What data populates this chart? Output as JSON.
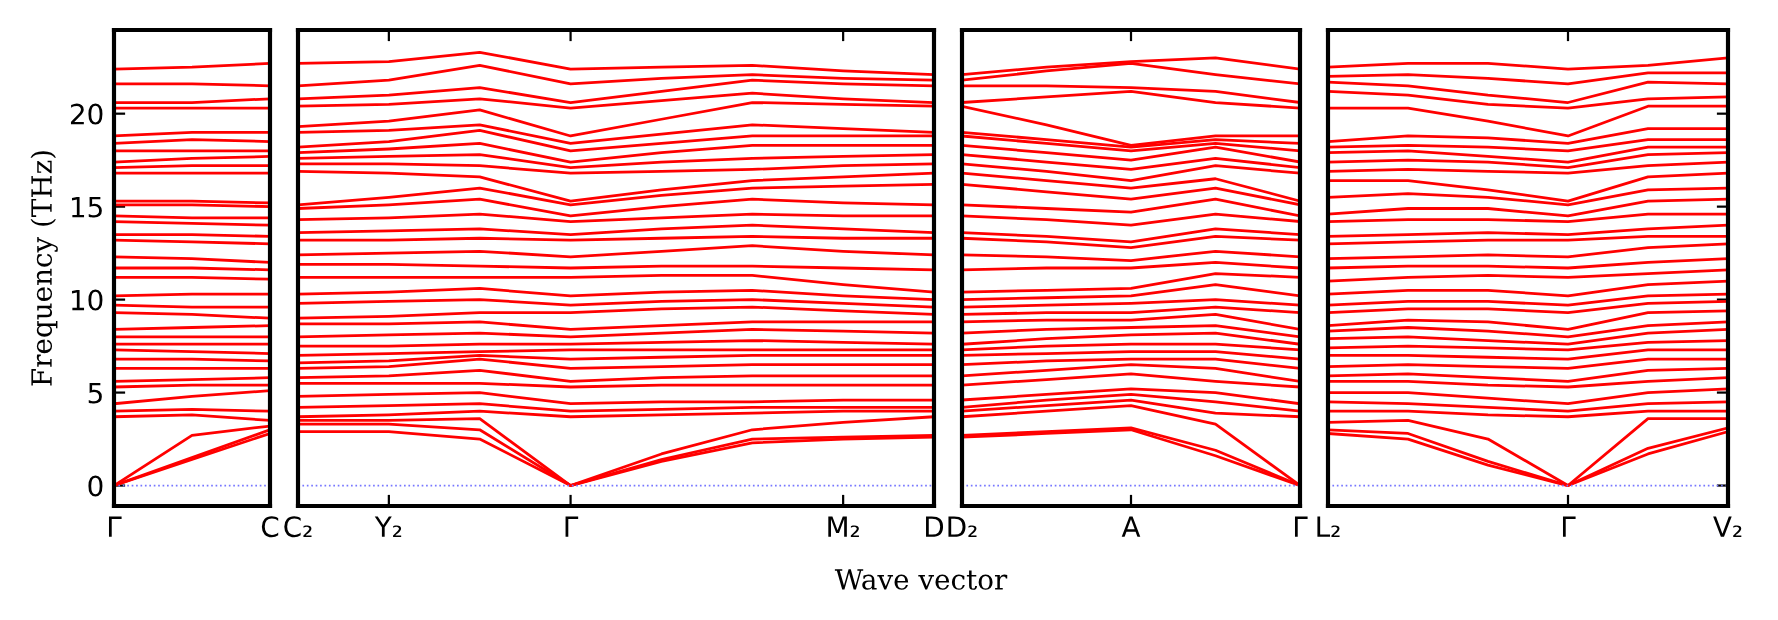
{
  "chart_data": [
    {
      "type": "line",
      "ylabel": "Frequency (THz)",
      "color": "#ff0000",
      "line_style": "solid",
      "marker": "none",
      "grid": false,
      "legend": false,
      "categories": [
        "Γ",
        null,
        "C"
      ],
      "ylim": [
        -1.1,
        24.5
      ],
      "yticks": [
        0,
        5,
        10,
        15,
        20
      ],
      "ref_lines": [
        {
          "axis": "y",
          "value": 0,
          "color": "#7777ff",
          "line_style": "dotted"
        }
      ],
      "series": [
        {
          "values": [
            0,
            1.4,
            2.8
          ]
        },
        {
          "values": [
            0,
            1.5,
            3.0
          ]
        },
        {
          "values": [
            0,
            2.7,
            3.2
          ]
        },
        {
          "values": [
            3.7,
            3.8,
            3.5
          ]
        },
        {
          "values": [
            4.0,
            4.1,
            4.0
          ]
        },
        {
          "values": [
            4.4,
            4.8,
            5.1
          ]
        },
        {
          "values": [
            5.3,
            5.4,
            5.4
          ]
        },
        {
          "values": [
            5.6,
            5.7,
            5.8
          ]
        },
        {
          "values": [
            6.3,
            6.3,
            6.3
          ]
        },
        {
          "values": [
            6.8,
            6.8,
            6.7
          ]
        },
        {
          "values": [
            7.3,
            7.2,
            7.1
          ]
        },
        {
          "values": [
            7.6,
            7.6,
            7.6
          ]
        },
        {
          "values": [
            8.0,
            8.0,
            8.0
          ]
        },
        {
          "values": [
            8.4,
            8.5,
            8.6
          ]
        },
        {
          "values": [
            9.3,
            9.2,
            9.0
          ]
        },
        {
          "values": [
            9.7,
            9.6,
            9.6
          ]
        },
        {
          "values": [
            10.2,
            10.3,
            10.3
          ]
        },
        {
          "values": [
            11.2,
            11.2,
            11.1
          ]
        },
        {
          "values": [
            11.7,
            11.7,
            11.6
          ]
        },
        {
          "values": [
            12.3,
            12.2,
            12.0
          ]
        },
        {
          "values": [
            13.2,
            13.1,
            13.0
          ]
        },
        {
          "values": [
            13.5,
            13.5,
            13.4
          ]
        },
        {
          "values": [
            14.2,
            14.1,
            14.0
          ]
        },
        {
          "values": [
            14.5,
            14.4,
            14.4
          ]
        },
        {
          "values": [
            15.1,
            15.1,
            15.0
          ]
        },
        {
          "values": [
            15.3,
            15.3,
            15.2
          ]
        },
        {
          "values": [
            16.8,
            16.8,
            16.8
          ]
        },
        {
          "values": [
            17.1,
            17.2,
            17.2
          ]
        },
        {
          "values": [
            17.4,
            17.6,
            17.7
          ]
        },
        {
          "values": [
            18.0,
            18.0,
            18.0
          ]
        },
        {
          "values": [
            18.4,
            18.6,
            18.5
          ]
        },
        {
          "values": [
            18.8,
            19.0,
            19.0
          ]
        },
        {
          "values": [
            20.3,
            20.3,
            20.3
          ]
        },
        {
          "values": [
            20.6,
            20.6,
            20.8
          ]
        },
        {
          "values": [
            21.6,
            21.6,
            21.5
          ]
        },
        {
          "values": [
            22.4,
            22.5,
            22.7
          ]
        }
      ]
    },
    {
      "type": "line",
      "xlabel": "Wave vector",
      "color": "#ff0000",
      "line_style": "solid",
      "marker": "none",
      "grid": false,
      "legend": false,
      "tick_labels": "x",
      "categories": [
        "C₂",
        "Y₂",
        null,
        "Γ",
        null,
        null,
        "M₂",
        "D"
      ],
      "ylim": [
        -1.1,
        24.5
      ],
      "yticks": [
        0,
        5,
        10,
        15,
        20
      ],
      "ref_lines": [
        {
          "axis": "y",
          "value": 0,
          "color": "#7777ff",
          "line_style": "dotted"
        }
      ],
      "series": [
        {
          "values": [
            2.9,
            2.9,
            2.5,
            0,
            1.3,
            2.3,
            2.5,
            2.6
          ]
        },
        {
          "values": [
            3.3,
            3.3,
            3.0,
            0,
            1.4,
            2.5,
            2.6,
            2.7
          ]
        },
        {
          "values": [
            3.5,
            3.5,
            3.6,
            0,
            1.7,
            3.0,
            3.4,
            3.7
          ]
        },
        {
          "values": [
            3.7,
            3.8,
            4.0,
            3.7,
            3.8,
            3.9,
            4.0,
            4.0
          ]
        },
        {
          "values": [
            4.2,
            4.3,
            4.4,
            4.0,
            4.1,
            4.2,
            4.2,
            4.2
          ]
        },
        {
          "values": [
            4.8,
            4.9,
            5.0,
            4.4,
            4.5,
            4.5,
            4.6,
            4.6
          ]
        },
        {
          "values": [
            5.5,
            5.5,
            5.5,
            5.3,
            5.4,
            5.4,
            5.4,
            5.4
          ]
        },
        {
          "values": [
            5.8,
            5.9,
            6.2,
            5.6,
            5.8,
            5.9,
            5.9,
            5.9
          ]
        },
        {
          "values": [
            6.3,
            6.4,
            6.8,
            6.3,
            6.4,
            6.5,
            6.5,
            6.5
          ]
        },
        {
          "values": [
            6.6,
            6.7,
            7.0,
            6.8,
            6.9,
            7.0,
            7.0,
            7.0
          ]
        },
        {
          "values": [
            7.0,
            7.1,
            7.2,
            7.3,
            7.3,
            7.3,
            7.3,
            7.3
          ]
        },
        {
          "values": [
            7.5,
            7.5,
            7.6,
            7.6,
            7.7,
            7.8,
            7.7,
            7.6
          ]
        },
        {
          "values": [
            8.0,
            8.1,
            8.2,
            8.0,
            8.2,
            8.4,
            8.3,
            8.2
          ]
        },
        {
          "values": [
            8.7,
            8.7,
            8.8,
            8.4,
            8.6,
            8.8,
            8.8,
            8.8
          ]
        },
        {
          "values": [
            9.0,
            9.1,
            9.3,
            9.3,
            9.5,
            9.6,
            9.4,
            9.2
          ]
        },
        {
          "values": [
            9.8,
            9.9,
            10.0,
            9.7,
            9.9,
            10.0,
            9.8,
            9.6
          ]
        },
        {
          "values": [
            10.3,
            10.4,
            10.6,
            10.2,
            10.4,
            10.5,
            10.2,
            10.0
          ]
        },
        {
          "values": [
            11.2,
            11.2,
            11.2,
            11.2,
            11.3,
            11.3,
            10.8,
            10.4
          ]
        },
        {
          "values": [
            11.9,
            11.9,
            11.8,
            11.7,
            11.8,
            11.8,
            11.7,
            11.6
          ]
        },
        {
          "values": [
            12.4,
            12.5,
            12.6,
            12.3,
            12.6,
            12.9,
            12.6,
            12.4
          ]
        },
        {
          "values": [
            13.2,
            13.2,
            13.3,
            13.2,
            13.3,
            13.4,
            13.3,
            13.3
          ]
        },
        {
          "values": [
            13.6,
            13.7,
            13.8,
            13.5,
            13.8,
            14.0,
            13.8,
            13.6
          ]
        },
        {
          "values": [
            14.3,
            14.4,
            14.6,
            14.2,
            14.4,
            14.6,
            14.5,
            14.5
          ]
        },
        {
          "values": [
            14.9,
            15.1,
            15.4,
            14.5,
            15.0,
            15.4,
            15.2,
            15.1
          ]
        },
        {
          "values": [
            15.1,
            15.5,
            16.0,
            15.1,
            15.6,
            16.0,
            16.1,
            16.2
          ]
        },
        {
          "values": [
            16.9,
            16.8,
            16.6,
            15.3,
            15.9,
            16.4,
            16.6,
            16.8
          ]
        },
        {
          "values": [
            17.3,
            17.3,
            17.2,
            16.8,
            16.9,
            17.0,
            17.2,
            17.3
          ]
        },
        {
          "values": [
            17.6,
            17.7,
            17.8,
            17.1,
            17.4,
            17.6,
            17.7,
            17.8
          ]
        },
        {
          "values": [
            17.9,
            18.1,
            18.4,
            17.4,
            17.9,
            18.3,
            18.3,
            18.3
          ]
        },
        {
          "values": [
            18.2,
            18.5,
            19.1,
            18.0,
            18.4,
            18.8,
            18.8,
            18.8
          ]
        },
        {
          "values": [
            19.0,
            19.1,
            19.4,
            18.4,
            18.9,
            19.4,
            19.2,
            19.0
          ]
        },
        {
          "values": [
            19.3,
            19.6,
            20.2,
            18.8,
            19.7,
            20.6,
            20.5,
            20.4
          ]
        },
        {
          "values": [
            20.4,
            20.5,
            20.8,
            20.3,
            20.7,
            21.1,
            20.8,
            20.6
          ]
        },
        {
          "values": [
            20.8,
            21.0,
            21.4,
            20.6,
            21.2,
            21.8,
            21.6,
            21.5
          ]
        },
        {
          "values": [
            21.5,
            21.8,
            22.6,
            21.6,
            21.9,
            22.1,
            21.9,
            21.8
          ]
        },
        {
          "values": [
            22.7,
            22.8,
            23.3,
            22.4,
            22.5,
            22.6,
            22.3,
            22.1
          ]
        }
      ]
    },
    {
      "type": "line",
      "color": "#ff0000",
      "line_style": "solid",
      "marker": "none",
      "grid": false,
      "legend": false,
      "tick_labels": "x",
      "categories": [
        "D₂",
        null,
        "A",
        null,
        "Γ"
      ],
      "ylim": [
        -1.1,
        24.5
      ],
      "yticks": [
        0,
        5,
        10,
        15,
        20
      ],
      "ref_lines": [
        {
          "axis": "y",
          "value": 0,
          "color": "#7777ff",
          "line_style": "dotted"
        }
      ],
      "series": [
        {
          "values": [
            2.6,
            2.8,
            3.0,
            1.6,
            0
          ]
        },
        {
          "values": [
            2.7,
            2.9,
            3.1,
            1.9,
            0
          ]
        },
        {
          "values": [
            3.7,
            4.0,
            4.3,
            3.3,
            0
          ]
        },
        {
          "values": [
            4.0,
            4.3,
            4.6,
            3.9,
            3.7
          ]
        },
        {
          "values": [
            4.2,
            4.6,
            4.9,
            4.5,
            4.0
          ]
        },
        {
          "values": [
            4.6,
            4.9,
            5.2,
            5.0,
            4.4
          ]
        },
        {
          "values": [
            5.4,
            5.7,
            6.0,
            5.6,
            5.3
          ]
        },
        {
          "values": [
            5.9,
            6.2,
            6.5,
            6.3,
            5.6
          ]
        },
        {
          "values": [
            6.5,
            6.7,
            6.8,
            6.8,
            6.3
          ]
        },
        {
          "values": [
            7.0,
            7.1,
            7.2,
            7.2,
            6.8
          ]
        },
        {
          "values": [
            7.3,
            7.5,
            7.6,
            7.6,
            7.3
          ]
        },
        {
          "values": [
            7.6,
            7.9,
            8.1,
            8.2,
            7.6
          ]
        },
        {
          "values": [
            8.2,
            8.4,
            8.5,
            8.6,
            8.0
          ]
        },
        {
          "values": [
            8.8,
            8.9,
            8.9,
            9.2,
            8.4
          ]
        },
        {
          "values": [
            9.2,
            9.3,
            9.3,
            9.6,
            9.3
          ]
        },
        {
          "values": [
            9.6,
            9.7,
            9.8,
            10.0,
            9.7
          ]
        },
        {
          "values": [
            10.0,
            10.1,
            10.2,
            10.8,
            10.2
          ]
        },
        {
          "values": [
            10.4,
            10.5,
            10.6,
            11.4,
            11.2
          ]
        },
        {
          "values": [
            11.6,
            11.7,
            11.7,
            12.0,
            11.7
          ]
        },
        {
          "values": [
            12.4,
            12.3,
            12.1,
            12.6,
            12.3
          ]
        },
        {
          "values": [
            13.3,
            13.1,
            12.8,
            13.4,
            13.2
          ]
        },
        {
          "values": [
            13.6,
            13.4,
            13.1,
            13.8,
            13.5
          ]
        },
        {
          "values": [
            14.5,
            14.3,
            14.0,
            14.6,
            14.2
          ]
        },
        {
          "values": [
            15.1,
            14.9,
            14.7,
            15.4,
            14.5
          ]
        },
        {
          "values": [
            16.2,
            15.8,
            15.4,
            16.0,
            15.1
          ]
        },
        {
          "values": [
            16.8,
            16.4,
            16.0,
            16.5,
            15.3
          ]
        },
        {
          "values": [
            17.3,
            16.9,
            16.4,
            17.2,
            16.8
          ]
        },
        {
          "values": [
            17.8,
            17.4,
            17.0,
            17.6,
            17.1
          ]
        },
        {
          "values": [
            18.3,
            17.9,
            17.5,
            18.2,
            17.4
          ]
        },
        {
          "values": [
            18.8,
            18.4,
            18.0,
            18.4,
            18.0
          ]
        },
        {
          "values": [
            19.0,
            18.6,
            18.2,
            18.6,
            18.4
          ]
        },
        {
          "values": [
            20.4,
            19.4,
            18.3,
            18.8,
            18.8
          ]
        },
        {
          "values": [
            20.6,
            20.9,
            21.2,
            20.6,
            20.3
          ]
        },
        {
          "values": [
            21.5,
            21.5,
            21.4,
            21.2,
            20.6
          ]
        },
        {
          "values": [
            21.8,
            22.3,
            22.7,
            22.1,
            21.6
          ]
        },
        {
          "values": [
            22.1,
            22.5,
            22.8,
            23.0,
            22.4
          ]
        }
      ]
    },
    {
      "type": "line",
      "color": "#ff0000",
      "line_style": "solid",
      "marker": "none",
      "grid": false,
      "legend": false,
      "tick_labels": "x",
      "categories": [
        "L₂",
        null,
        null,
        "Γ",
        null,
        "V₂"
      ],
      "ylim": [
        -1.1,
        24.5
      ],
      "yticks": [
        0,
        5,
        10,
        15,
        20
      ],
      "ref_lines": [
        {
          "axis": "y",
          "value": 0,
          "color": "#7777ff",
          "line_style": "dotted"
        }
      ],
      "series": [
        {
          "values": [
            2.8,
            2.5,
            1.1,
            0,
            1.7,
            2.9
          ]
        },
        {
          "values": [
            3.0,
            2.8,
            1.3,
            0,
            2.0,
            3.1
          ]
        },
        {
          "values": [
            3.4,
            3.5,
            2.5,
            0,
            3.6,
            3.6
          ]
        },
        {
          "values": [
            4.0,
            4.0,
            3.8,
            3.7,
            4.0,
            4.0
          ]
        },
        {
          "values": [
            4.5,
            4.4,
            4.2,
            4.0,
            4.4,
            4.5
          ]
        },
        {
          "values": [
            5.0,
            5.0,
            4.7,
            4.4,
            5.0,
            5.2
          ]
        },
        {
          "values": [
            5.6,
            5.6,
            5.4,
            5.3,
            5.6,
            5.8
          ]
        },
        {
          "values": [
            5.9,
            6.0,
            5.8,
            5.6,
            6.2,
            6.3
          ]
        },
        {
          "values": [
            6.4,
            6.5,
            6.4,
            6.3,
            6.8,
            6.8
          ]
        },
        {
          "values": [
            7.0,
            7.0,
            6.9,
            6.8,
            7.3,
            7.3
          ]
        },
        {
          "values": [
            7.4,
            7.5,
            7.4,
            7.3,
            7.7,
            7.8
          ]
        },
        {
          "values": [
            7.9,
            8.0,
            7.8,
            7.6,
            8.2,
            8.4
          ]
        },
        {
          "values": [
            8.3,
            8.5,
            8.3,
            8.0,
            8.6,
            8.8
          ]
        },
        {
          "values": [
            8.6,
            8.9,
            8.8,
            8.4,
            9.3,
            9.4
          ]
        },
        {
          "values": [
            9.3,
            9.5,
            9.5,
            9.3,
            9.8,
            9.9
          ]
        },
        {
          "values": [
            9.7,
            9.9,
            9.9,
            9.7,
            10.2,
            10.3
          ]
        },
        {
          "values": [
            10.3,
            10.5,
            10.5,
            10.2,
            10.8,
            11.0
          ]
        },
        {
          "values": [
            11.0,
            11.2,
            11.3,
            11.2,
            11.4,
            11.6
          ]
        },
        {
          "values": [
            11.7,
            11.8,
            11.8,
            11.7,
            12.0,
            12.2
          ]
        },
        {
          "values": [
            12.2,
            12.3,
            12.4,
            12.3,
            12.8,
            13.0
          ]
        },
        {
          "values": [
            13.0,
            13.1,
            13.2,
            13.2,
            13.4,
            13.4
          ]
        },
        {
          "values": [
            13.4,
            13.5,
            13.6,
            13.5,
            13.8,
            14.0
          ]
        },
        {
          "values": [
            14.2,
            14.3,
            14.3,
            14.2,
            14.6,
            14.6
          ]
        },
        {
          "values": [
            14.6,
            14.9,
            14.9,
            14.5,
            15.3,
            15.4
          ]
        },
        {
          "values": [
            15.5,
            15.7,
            15.5,
            15.1,
            15.9,
            16.0
          ]
        },
        {
          "values": [
            16.4,
            16.4,
            15.9,
            15.3,
            16.6,
            16.8
          ]
        },
        {
          "values": [
            16.9,
            17.0,
            16.9,
            16.8,
            17.2,
            17.4
          ]
        },
        {
          "values": [
            17.4,
            17.5,
            17.4,
            17.1,
            17.8,
            17.9
          ]
        },
        {
          "values": [
            17.9,
            18.0,
            17.7,
            17.4,
            18.2,
            18.2
          ]
        },
        {
          "values": [
            18.2,
            18.3,
            18.2,
            18.0,
            18.6,
            18.6
          ]
        },
        {
          "values": [
            18.5,
            18.8,
            18.7,
            18.4,
            19.2,
            19.2
          ]
        },
        {
          "values": [
            20.3,
            20.3,
            19.6,
            18.8,
            20.4,
            20.4
          ]
        },
        {
          "values": [
            21.2,
            21.0,
            20.5,
            20.3,
            20.8,
            20.9
          ]
        },
        {
          "values": [
            21.7,
            21.5,
            21.0,
            20.6,
            21.7,
            21.6
          ]
        },
        {
          "values": [
            22.0,
            22.1,
            21.9,
            21.6,
            22.2,
            22.2
          ]
        },
        {
          "values": [
            22.5,
            22.7,
            22.7,
            22.4,
            22.6,
            23.0
          ]
        }
      ]
    }
  ]
}
